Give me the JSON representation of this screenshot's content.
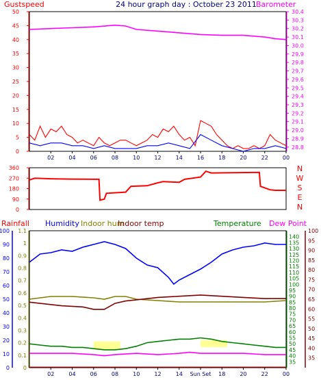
{
  "title": "24 hour graph day : October 23 2011",
  "colors": {
    "red": "#ff0000",
    "magenta": "#ff00ff",
    "blue": "#0000ff",
    "navy": "#0000ff",
    "olive": "#808000",
    "maroon": "#800000",
    "green": "#008000",
    "purple": "#ff00ff",
    "yellow": "#ffff66",
    "tick_text": "#000080",
    "baro_text": "#ff00ff",
    "gust_axis": "#ff0000",
    "rain_axis": "#0000ff",
    "temp_axis": "#800000",
    "hum_axis": "#0000ff"
  },
  "labels": {
    "gustspeed": "Gustspeed",
    "barometer": "Barometer",
    "rainfall": "Rainfall",
    "humidity": "Humidity",
    "indoor_hum": "Indoor hum",
    "indoor_temp": "Indoor temp",
    "temperature": "Temperature",
    "dew_point": "Dew Point",
    "sunset": "Sun Set"
  },
  "compass": [
    "N",
    "W",
    "S",
    "E",
    "N"
  ],
  "x_ticks": [
    "02",
    "04",
    "06",
    "08",
    "10",
    "12",
    "14",
    "16",
    "18",
    "20",
    "22",
    "00"
  ],
  "x_ticks_bottom": [
    "02",
    "04",
    "06",
    "08",
    "10",
    "12",
    "14",
    "Sun Set",
    "18",
    "20",
    "22",
    "00"
  ],
  "chart_data": [
    {
      "type": "line",
      "title": "24 hour graph day : October 23 2011",
      "x_range": [
        0,
        24
      ],
      "left_axis": {
        "label": "Gustspeed",
        "ylim": [
          0,
          50
        ],
        "ticks": [
          0,
          5,
          10,
          15,
          20,
          25,
          30,
          35,
          40,
          45,
          50
        ]
      },
      "right_axis": {
        "label": "Barometer",
        "ylim": [
          28.75,
          30.4
        ],
        "ticks": [
          28.8,
          28.9,
          29.0,
          29.1,
          29.2,
          29.3,
          29.4,
          29.5,
          29.6,
          29.7,
          29.8,
          29.9,
          30.0,
          30.1,
          30.2,
          30.3,
          30.4
        ]
      },
      "series": [
        {
          "name": "Barometer",
          "axis": "right",
          "color": "#ff00ff",
          "x": [
            0,
            2,
            4,
            6,
            8,
            9,
            10,
            12,
            14,
            16,
            18,
            20,
            22,
            23,
            24
          ],
          "values": [
            30.19,
            30.2,
            30.21,
            30.22,
            30.24,
            30.23,
            30.19,
            30.17,
            30.15,
            30.13,
            30.12,
            30.12,
            30.1,
            30.08,
            30.07
          ]
        },
        {
          "name": "Gustspeed",
          "axis": "left",
          "color": "#ff0000",
          "x": [
            0,
            0.5,
            1,
            1.5,
            2,
            2.5,
            3,
            3.5,
            4,
            4.5,
            5,
            5.5,
            6,
            6.5,
            7,
            7.5,
            8,
            8.5,
            9,
            9.5,
            10,
            10.5,
            11,
            11.5,
            12,
            12.5,
            13,
            13.5,
            14,
            14.5,
            15,
            15.5,
            16,
            16.5,
            17,
            17.5,
            18,
            18.5,
            19,
            19.5,
            20,
            20.5,
            21,
            21.5,
            22,
            22.5,
            23,
            23.5,
            24
          ],
          "values": [
            6,
            4,
            9,
            5,
            8,
            7,
            9,
            6,
            5,
            3,
            4,
            3,
            2,
            5,
            3,
            2,
            3,
            4,
            4,
            3,
            2,
            3,
            4,
            6,
            5,
            8,
            7,
            9,
            6,
            4,
            5,
            2,
            11,
            10,
            9,
            6,
            4,
            2,
            1,
            2,
            1,
            1,
            2,
            1,
            2,
            6,
            4,
            3,
            2
          ]
        },
        {
          "name": "Windspeed",
          "axis": "left",
          "color": "#0000ff",
          "x": [
            0,
            1,
            2,
            3,
            4,
            5,
            6,
            7,
            8,
            9,
            10,
            11,
            12,
            13,
            14,
            15,
            16,
            17,
            18,
            19,
            20,
            21,
            22,
            23,
            24
          ],
          "values": [
            3,
            2,
            3,
            3,
            2,
            2,
            1,
            2,
            1,
            1,
            1,
            2,
            2,
            3,
            2,
            1,
            6,
            4,
            2,
            1,
            0,
            1,
            1,
            2,
            1
          ]
        }
      ]
    },
    {
      "type": "line",
      "title": "",
      "x_range": [
        0,
        24
      ],
      "left_axis": {
        "label": "",
        "ylim": [
          0,
          360
        ],
        "ticks": [
          0,
          90,
          180,
          270,
          360
        ]
      },
      "series": [
        {
          "name": "Wind direction",
          "color": "#ff0000",
          "x": [
            0,
            0.5,
            2,
            4,
            6.5,
            6.6,
            7,
            7.2,
            9,
            9.5,
            11,
            12,
            12.5,
            14,
            14.5,
            16,
            16.5,
            17,
            21.5,
            21.6,
            22.5,
            23,
            24
          ],
          "values": [
            255,
            270,
            265,
            262,
            260,
            80,
            90,
            140,
            150,
            200,
            205,
            230,
            240,
            235,
            260,
            280,
            330,
            315,
            320,
            200,
            170,
            165,
            165
          ]
        }
      ]
    },
    {
      "type": "line",
      "title": "",
      "x_range": [
        0,
        24
      ],
      "left_axis": {
        "label": "Rainfall",
        "ylim": [
          0,
          100
        ],
        "ticks": [
          0,
          10,
          20,
          30,
          40,
          50,
          60,
          70,
          80,
          90,
          100
        ]
      },
      "left_axis_2": {
        "label": "Humidity",
        "ylim": [
          0,
          1.1
        ],
        "ticks": [
          0,
          0.1,
          0.2,
          0.3,
          0.4,
          0.5,
          0.6,
          0.7,
          0.8,
          0.9,
          1.0,
          1.1
        ]
      },
      "right_axis": {
        "label": "Temperature",
        "ylim": [
          30,
          145
        ],
        "ticks": [
          35,
          40,
          45,
          50,
          55,
          60,
          65,
          70,
          75,
          80,
          85,
          90,
          95,
          100,
          105,
          110,
          115,
          120,
          125,
          130,
          135,
          140
        ]
      },
      "right_axis_2": {
        "label": "Dew Point",
        "ylim": [
          30,
          100
        ],
        "ticks": [
          35,
          40,
          45,
          50,
          55,
          60,
          65,
          70,
          75,
          80,
          85,
          90,
          95,
          100
        ]
      },
      "series": [
        {
          "name": "Humidity",
          "axis": "left",
          "color": "#0000ff",
          "x": [
            0,
            1,
            2,
            3,
            4,
            5,
            6,
            7,
            8,
            9,
            10,
            11,
            12,
            13,
            13.5,
            14,
            15,
            16,
            17,
            18,
            19,
            20,
            21,
            22,
            23,
            24
          ],
          "values": [
            77,
            83,
            84,
            86,
            85,
            88,
            90,
            92,
            90,
            87,
            80,
            75,
            73,
            66,
            61,
            64,
            68,
            72,
            77,
            83,
            86,
            88,
            89,
            91,
            90,
            90
          ]
        },
        {
          "name": "Indoor hum",
          "axis": "left",
          "color": "#808000",
          "x": [
            0,
            2,
            4,
            6,
            7,
            8,
            9,
            10,
            12,
            14,
            16,
            18,
            20,
            22,
            24
          ],
          "values": [
            50,
            52,
            52,
            51,
            50,
            52,
            52,
            50,
            49,
            48,
            48,
            48,
            48,
            48,
            49
          ]
        },
        {
          "name": "Indoor temp",
          "axis": "right",
          "color": "#800000",
          "x": [
            0,
            1,
            3,
            5,
            6,
            7,
            8,
            9,
            10,
            12,
            14,
            16,
            18,
            20,
            22,
            24
          ],
          "values": [
            85,
            84,
            82,
            81,
            79,
            79,
            84,
            86,
            87,
            89,
            90,
            91,
            90,
            89,
            88,
            88
          ]
        },
        {
          "name": "Temperature",
          "axis": "right",
          "color": "#008000",
          "x": [
            0,
            1,
            2,
            3,
            4,
            5,
            6,
            7,
            8,
            9,
            10,
            11,
            12,
            13,
            14,
            15,
            16,
            17,
            18,
            19,
            20,
            21,
            22,
            23,
            24
          ],
          "values": [
            50,
            49,
            48,
            48,
            47,
            47,
            46,
            45,
            45,
            46,
            48,
            51,
            52,
            53,
            54,
            54,
            55,
            54,
            52,
            51,
            50,
            49,
            48,
            47,
            47
          ]
        },
        {
          "name": "Dew Point",
          "axis": "right",
          "color": "#ff00ff",
          "x": [
            0,
            2,
            4,
            6,
            7,
            8,
            10,
            12,
            14,
            15,
            16,
            18,
            20,
            22,
            24
          ],
          "values": [
            42,
            42,
            42,
            41,
            40,
            41,
            42,
            41,
            42,
            43,
            42,
            42,
            42,
            41,
            41
          ]
        }
      ]
    }
  ]
}
